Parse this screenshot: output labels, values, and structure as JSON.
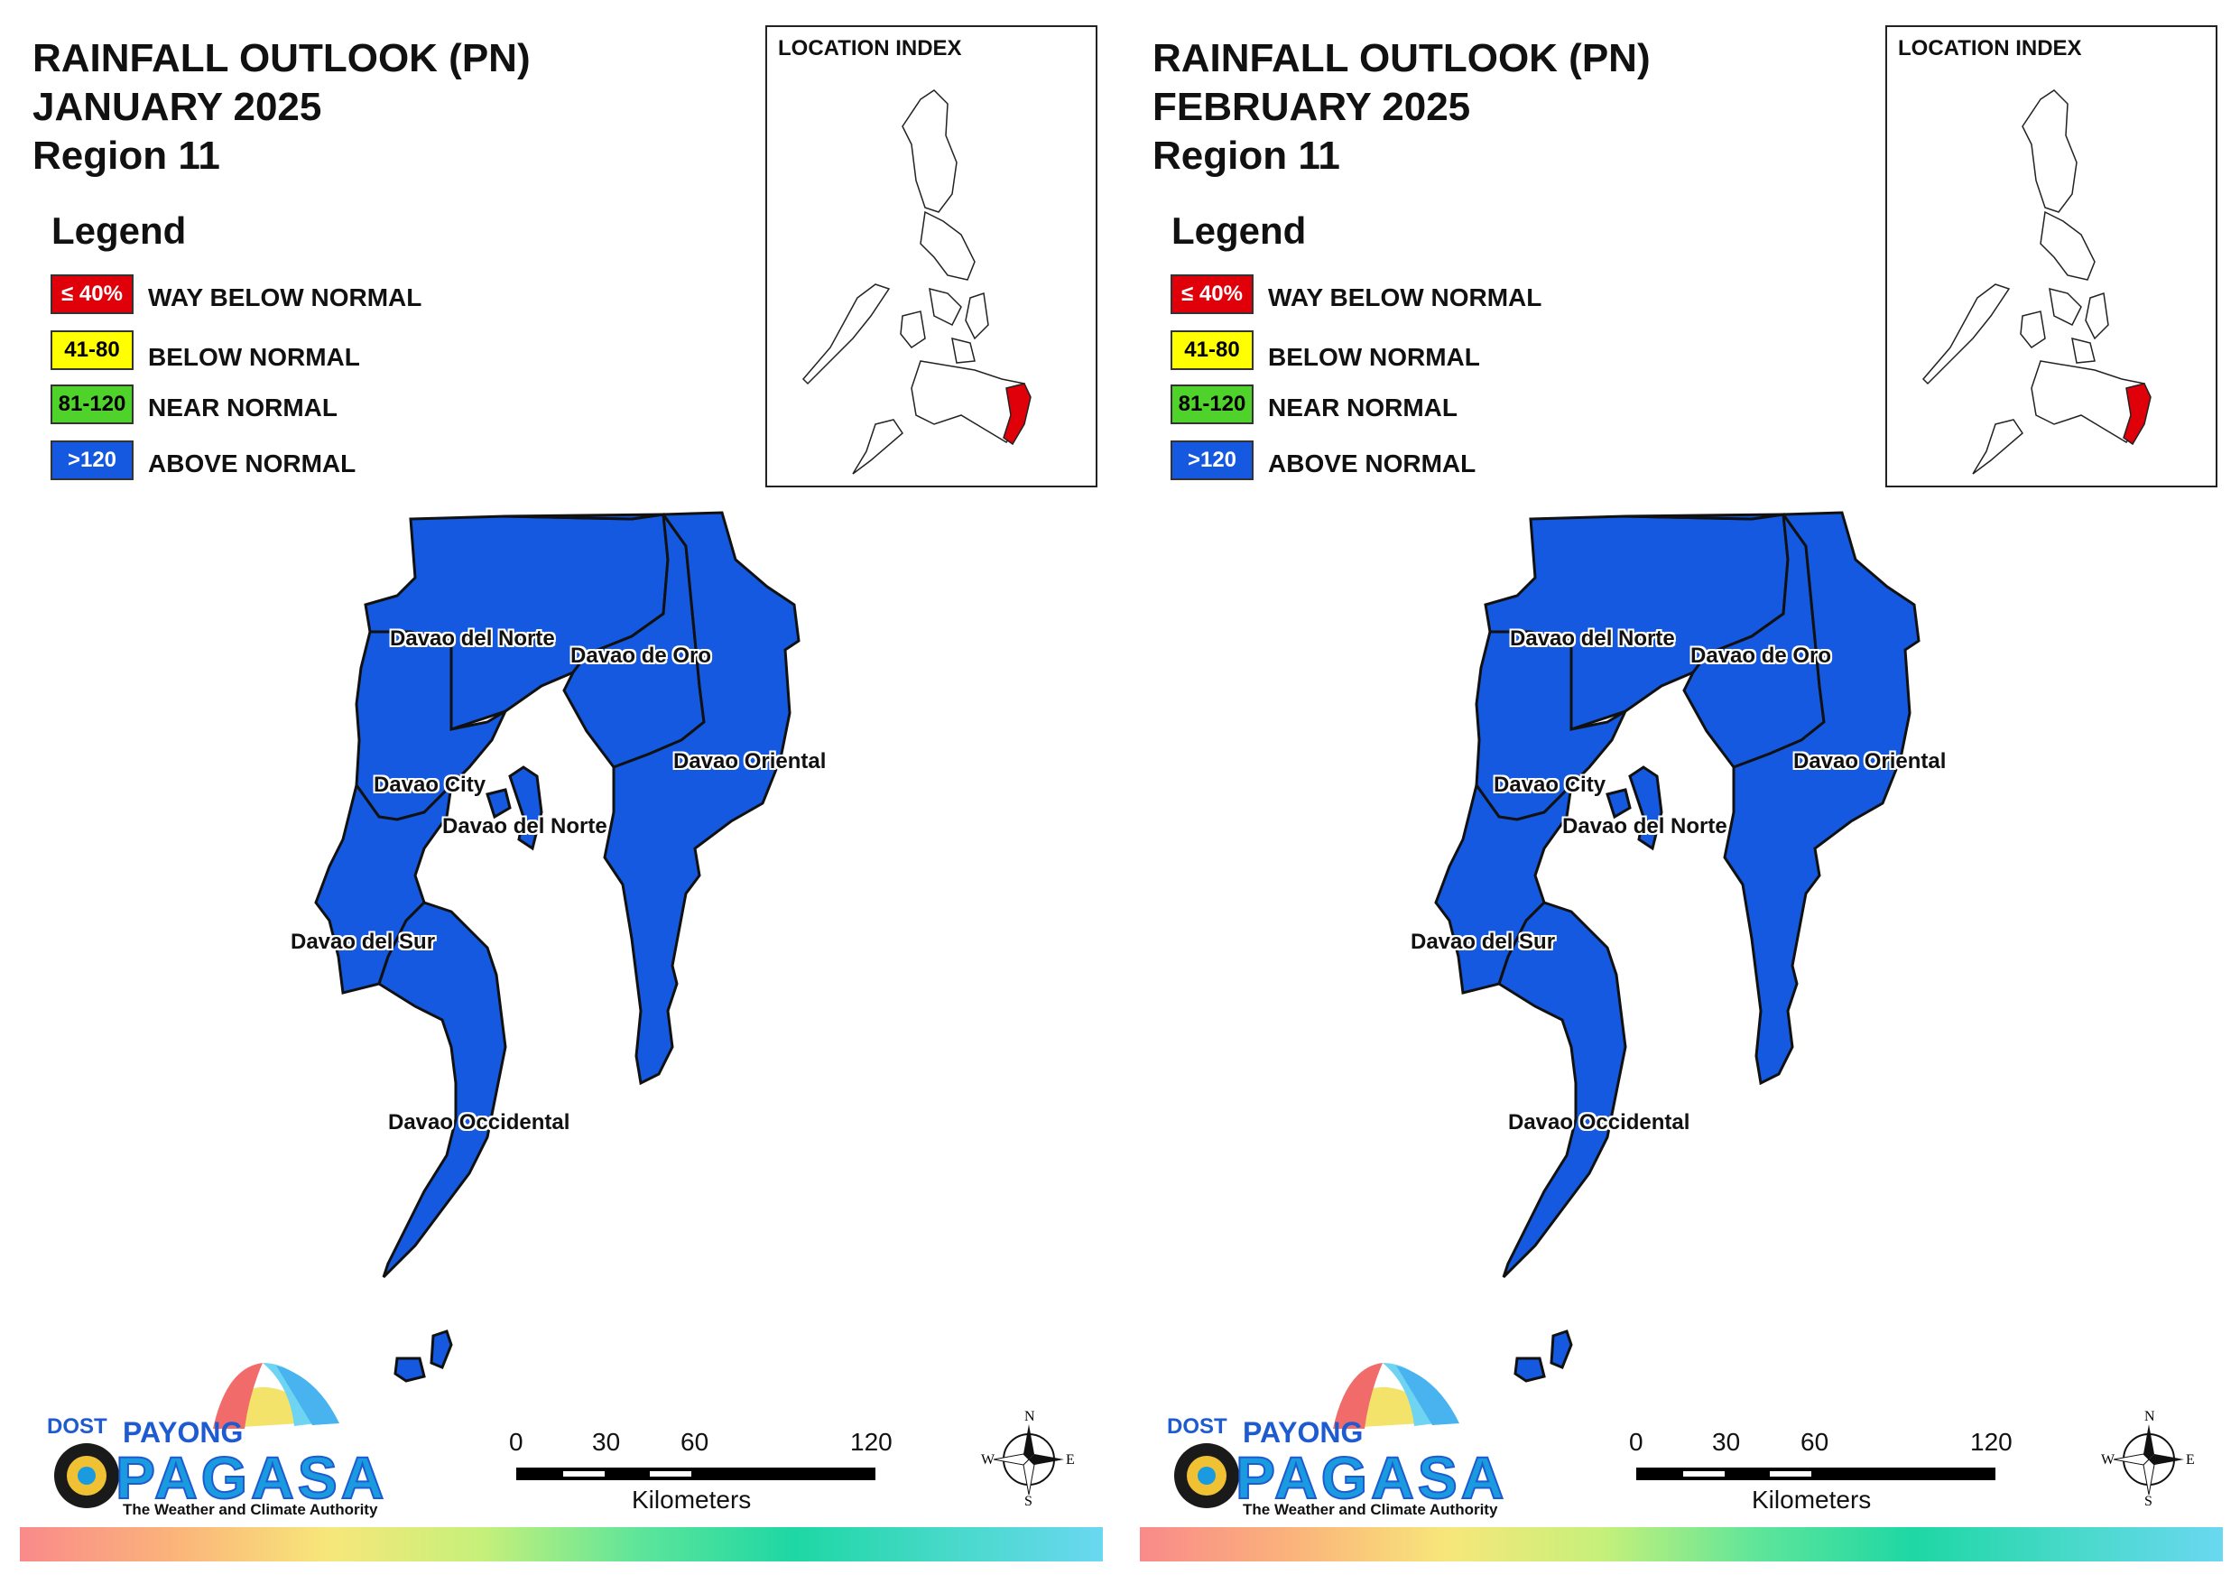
{
  "panels": [
    {
      "title_line1": "RAINFALL OUTLOOK (PN)",
      "title_line2": "JANUARY 2025",
      "title_line3": "Region 11",
      "legend_title": "Legend",
      "legend": [
        {
          "swatch": "≤ 40%",
          "label": "WAY BELOW NORMAL",
          "color": "#e0000a",
          "text_color": "#ffffff"
        },
        {
          "swatch": "41-80",
          "label": "BELOW NORMAL",
          "color": "#ffff00",
          "text_color": "#000000"
        },
        {
          "swatch": "81-120",
          "label": "NEAR NORMAL",
          "color": "#4fd22a",
          "text_color": "#000000"
        },
        {
          "swatch": ">120",
          "label": "ABOVE NORMAL",
          "color": "#1459e0",
          "text_color": "#ffffff"
        }
      ],
      "index_title": "LOCATION INDEX",
      "places": [
        "Davao del Norte",
        "Davao de Oro",
        "Davao Oriental",
        "Davao City",
        "Davao del Norte",
        "Davao del Sur",
        "Davao Occidental"
      ],
      "region_fill": "#1459e0",
      "category": "ABOVE NORMAL",
      "scale_ticks": [
        "0",
        "30",
        "60",
        "120"
      ],
      "scale_unit": "Kilometers",
      "compass": {
        "n": "N",
        "s": "S",
        "e": "E",
        "w": "W"
      },
      "logo": {
        "dost": "DOST",
        "payong": "PAYONG",
        "pagasa": "PAGASA",
        "tagline": "The Weather and Climate Authority"
      }
    },
    {
      "title_line1": "RAINFALL OUTLOOK (PN)",
      "title_line2": "FEBRUARY 2025",
      "title_line3": "Region 11",
      "legend_title": "Legend",
      "legend": [
        {
          "swatch": "≤ 40%",
          "label": "WAY BELOW NORMAL",
          "color": "#e0000a",
          "text_color": "#ffffff"
        },
        {
          "swatch": "41-80",
          "label": "BELOW NORMAL",
          "color": "#ffff00",
          "text_color": "#000000"
        },
        {
          "swatch": "81-120",
          "label": "NEAR NORMAL",
          "color": "#4fd22a",
          "text_color": "#000000"
        },
        {
          "swatch": ">120",
          "label": "ABOVE NORMAL",
          "color": "#1459e0",
          "text_color": "#ffffff"
        }
      ],
      "index_title": "LOCATION INDEX",
      "places": [
        "Davao del Norte",
        "Davao de Oro",
        "Davao Oriental",
        "Davao City",
        "Davao del Norte",
        "Davao del Sur",
        "Davao Occidental"
      ],
      "region_fill": "#1459e0",
      "category": "ABOVE NORMAL",
      "scale_ticks": [
        "0",
        "30",
        "60",
        "120"
      ],
      "scale_unit": "Kilometers",
      "compass": {
        "n": "N",
        "s": "S",
        "e": "E",
        "w": "W"
      },
      "logo": {
        "dost": "DOST",
        "payong": "PAYONG",
        "pagasa": "PAGASA",
        "tagline": "The Weather and Climate Authority"
      }
    }
  ]
}
